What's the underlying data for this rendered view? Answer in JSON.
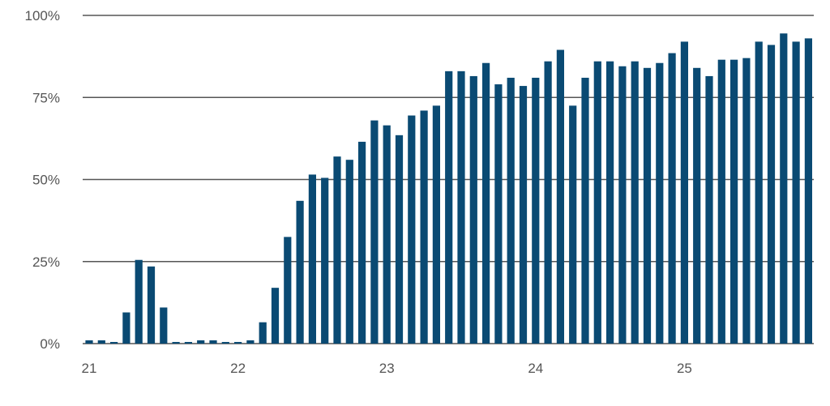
{
  "chart_data": {
    "type": "bar",
    "title": "",
    "xlabel": "",
    "ylabel": "",
    "ylim": [
      0,
      100
    ],
    "grid": "horizontal",
    "bar_color": "#0a4a73",
    "grid_color": "#555555",
    "yticks": [
      {
        "value": 0,
        "label": "0%"
      },
      {
        "value": 25,
        "label": "25%"
      },
      {
        "value": 50,
        "label": "50%"
      },
      {
        "value": 75,
        "label": "75%"
      },
      {
        "value": 100,
        "label": "100%"
      }
    ],
    "xticks": [
      {
        "index": 0,
        "label": "21"
      },
      {
        "index": 12,
        "label": "22"
      },
      {
        "index": 24,
        "label": "23"
      },
      {
        "index": 36,
        "label": "24"
      },
      {
        "index": 48,
        "label": "25"
      }
    ],
    "values": [
      1,
      1,
      0.5,
      9.5,
      25.5,
      23.5,
      11,
      0.5,
      0.5,
      1,
      1,
      0.5,
      0.5,
      1,
      6.5,
      17,
      32.5,
      43.5,
      51.5,
      50.5,
      57,
      56,
      61.5,
      68,
      66.5,
      63.5,
      69.5,
      71,
      72.5,
      83,
      83,
      81.5,
      85.5,
      79,
      81,
      78.5,
      81,
      86,
      89.5,
      72.5,
      81,
      86,
      86,
      84.5,
      86,
      84,
      85.5,
      88.5,
      92,
      84,
      81.5,
      86.5,
      86.5,
      87,
      92,
      91,
      94.5,
      92,
      93
    ]
  }
}
